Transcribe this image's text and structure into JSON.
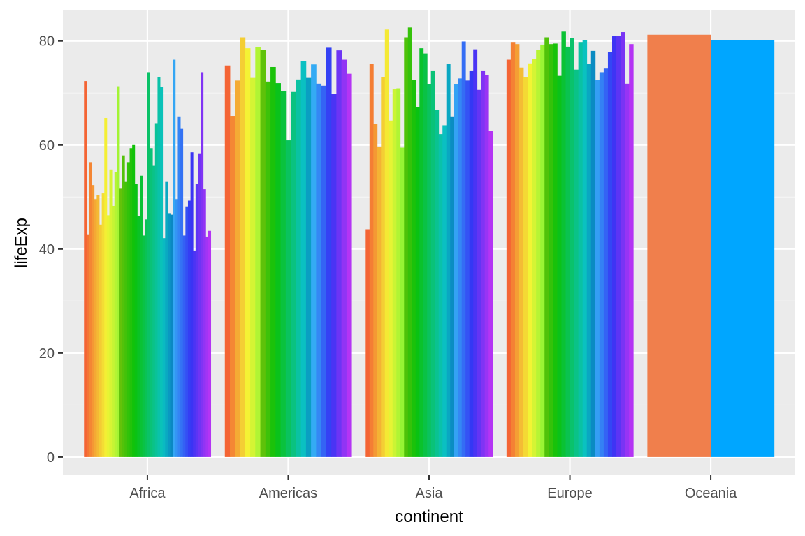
{
  "chart_data": {
    "type": "bar",
    "xlabel": "continent",
    "ylabel": "lifeExp",
    "ylim": [
      -3.5,
      86
    ],
    "yticks": [
      0,
      20,
      40,
      60,
      80
    ],
    "ytick_labels": [
      "0",
      "20",
      "40",
      "60",
      "80"
    ],
    "grid": true,
    "legend": "none",
    "categories": [
      "Africa",
      "Americas",
      "Asia",
      "Europe",
      "Oceania"
    ],
    "groups": [
      {
        "category": "Africa",
        "values": [
          72.3,
          42.7,
          56.7,
          52.3,
          49.6,
          50.4,
          44.7,
          50.7,
          65.2,
          46.5,
          55.3,
          48.3,
          54.8,
          71.3,
          51.6,
          58.0,
          52.9,
          56.7,
          59.4,
          60.0,
          52.5,
          46.4,
          54.1,
          42.6,
          45.7,
          74.0,
          59.4,
          56.0,
          64.2,
          73.0,
          71.2,
          42.1,
          52.9,
          46.9,
          46.6,
          76.4,
          49.6,
          65.5,
          63.1,
          42.6,
          48.2,
          49.3,
          58.6,
          39.6,
          52.5,
          58.4,
          74.0,
          51.5,
          42.4,
          43.5
        ]
      },
      {
        "category": "Americas",
        "values": [
          75.3,
          65.6,
          72.4,
          80.7,
          78.6,
          72.9,
          78.8,
          78.3,
          72.2,
          75.0,
          71.9,
          70.3,
          60.9,
          70.2,
          72.6,
          76.2,
          72.9,
          75.5,
          71.8,
          71.4,
          78.7,
          69.8,
          78.2,
          76.4,
          73.7
        ]
      },
      {
        "category": "Asia",
        "values": [
          43.8,
          75.6,
          64.1,
          59.7,
          73.0,
          82.2,
          64.7,
          70.7,
          70.9,
          59.5,
          80.7,
          82.6,
          72.5,
          67.3,
          78.6,
          77.6,
          71.7,
          74.2,
          66.8,
          62.1,
          63.8,
          75.6,
          65.5,
          71.7,
          72.8,
          79.9,
          72.4,
          74.2,
          78.4,
          70.6,
          74.2,
          73.4,
          62.7
        ]
      },
      {
        "category": "Europe",
        "values": [
          76.4,
          79.8,
          79.4,
          74.9,
          73.0,
          75.7,
          76.5,
          78.3,
          79.3,
          80.7,
          79.4,
          79.5,
          73.3,
          81.8,
          78.9,
          80.5,
          74.5,
          79.8,
          80.2,
          75.6,
          78.1,
          72.5,
          74.0,
          74.7,
          77.9,
          80.9,
          80.9,
          81.7,
          71.8,
          79.4
        ]
      },
      {
        "category": "Oceania",
        "values": [
          81.2,
          80.2
        ]
      }
    ]
  },
  "colors": {
    "panel_background": "#ebebeb",
    "major_grid": "#ffffff",
    "minor_grid": "#f5f5f5",
    "tick_text": "#4d4d4d",
    "tick_mark": "#333333",
    "title_text": "#000000"
  }
}
